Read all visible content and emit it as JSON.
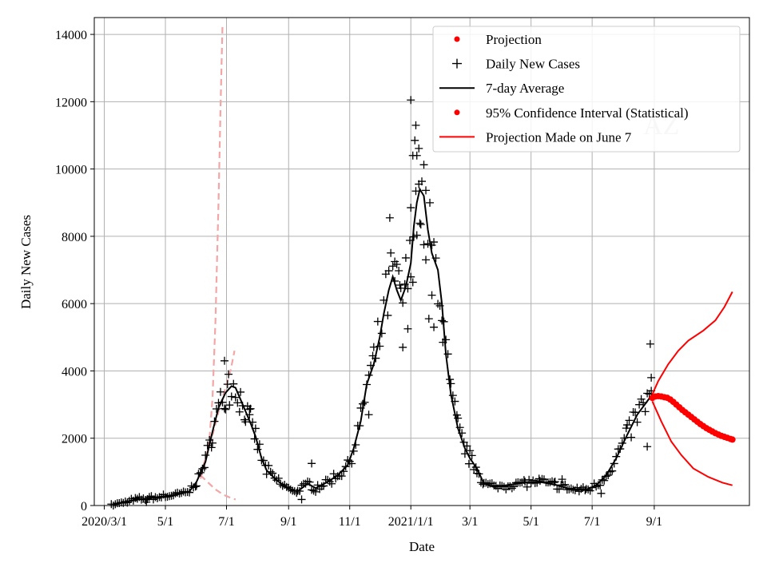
{
  "chart_data": {
    "type": "line",
    "title": "",
    "xlabel": "Date",
    "ylabel": "Daily New Cases",
    "watermark": "AZ",
    "xlim": [
      "2020-02-20",
      "2021-12-05"
    ],
    "ylim": [
      0,
      14500
    ],
    "x_ticks": [
      {
        "date": "2020-03-01",
        "label": "2020/3/1"
      },
      {
        "date": "2020-05-01",
        "label": "5/1"
      },
      {
        "date": "2020-07-01",
        "label": "7/1"
      },
      {
        "date": "2020-09-01",
        "label": "9/1"
      },
      {
        "date": "2020-11-01",
        "label": "11/1"
      },
      {
        "date": "2021-01-01",
        "label": "2021/1/1"
      },
      {
        "date": "2021-03-01",
        "label": "3/1"
      },
      {
        "date": "2021-05-01",
        "label": "5/1"
      },
      {
        "date": "2021-07-01",
        "label": "7/1"
      },
      {
        "date": "2021-09-01",
        "label": "9/1"
      }
    ],
    "y_ticks": [
      0,
      2000,
      4000,
      6000,
      8000,
      10000,
      12000,
      14000
    ],
    "grid": true,
    "legend_position": "top-right",
    "legend": [
      {
        "label": "Projection",
        "marker": "dot",
        "color": "#ff0000"
      },
      {
        "label": "Daily New Cases",
        "marker": "plus",
        "color": "#000000"
      },
      {
        "label": "7-day Average",
        "marker": "line",
        "color": "#000000"
      },
      {
        "label": "95% Confidence Interval (Statistical)",
        "marker": "dot",
        "color": "#ff0000"
      },
      {
        "label": "Projection Made on June 7",
        "marker": "line",
        "color": "#ff0000"
      }
    ],
    "series": [
      {
        "name": "7-day Average",
        "color": "#000000",
        "style": "line",
        "points": [
          [
            "2020-03-10",
            20
          ],
          [
            "2020-03-20",
            90
          ],
          [
            "2020-04-01",
            170
          ],
          [
            "2020-04-15",
            220
          ],
          [
            "2020-05-01",
            280
          ],
          [
            "2020-05-15",
            340
          ],
          [
            "2020-05-25",
            420
          ],
          [
            "2020-06-01",
            700
          ],
          [
            "2020-06-10",
            1300
          ],
          [
            "2020-06-17",
            2200
          ],
          [
            "2020-06-23",
            2900
          ],
          [
            "2020-06-30",
            3350
          ],
          [
            "2020-07-06",
            3550
          ],
          [
            "2020-07-10",
            3500
          ],
          [
            "2020-07-15",
            3150
          ],
          [
            "2020-07-20",
            2800
          ],
          [
            "2020-07-25",
            2450
          ],
          [
            "2020-07-30",
            2050
          ],
          [
            "2020-08-05",
            1400
          ],
          [
            "2020-08-10",
            1050
          ],
          [
            "2020-08-20",
            750
          ],
          [
            "2020-09-01",
            500
          ],
          [
            "2020-09-10",
            420
          ],
          [
            "2020-09-20",
            650
          ],
          [
            "2020-09-28",
            520
          ],
          [
            "2020-10-10",
            700
          ],
          [
            "2020-10-20",
            900
          ],
          [
            "2020-10-30",
            1200
          ],
          [
            "2020-11-05",
            1700
          ],
          [
            "2020-11-12",
            2500
          ],
          [
            "2020-11-18",
            3600
          ],
          [
            "2020-11-25",
            4200
          ],
          [
            "2020-12-01",
            5000
          ],
          [
            "2020-12-05",
            5700
          ],
          [
            "2020-12-10",
            6400
          ],
          [
            "2020-12-14",
            6800
          ],
          [
            "2020-12-18",
            6400
          ],
          [
            "2020-12-22",
            6100
          ],
          [
            "2020-12-27",
            6500
          ],
          [
            "2021-01-01",
            7200
          ],
          [
            "2021-01-04",
            8300
          ],
          [
            "2021-01-07",
            9000
          ],
          [
            "2021-01-10",
            9400
          ],
          [
            "2021-01-14",
            9200
          ],
          [
            "2021-01-18",
            8200
          ],
          [
            "2021-01-22",
            7500
          ],
          [
            "2021-01-28",
            7000
          ],
          [
            "2021-02-01",
            6000
          ],
          [
            "2021-02-05",
            4500
          ],
          [
            "2021-02-10",
            3300
          ],
          [
            "2021-02-17",
            2300
          ],
          [
            "2021-02-24",
            1700
          ],
          [
            "2021-03-01",
            1400
          ],
          [
            "2021-03-08",
            1100
          ],
          [
            "2021-03-15",
            650
          ],
          [
            "2021-03-25",
            550
          ],
          [
            "2021-04-10",
            620
          ],
          [
            "2021-04-25",
            680
          ],
          [
            "2021-05-10",
            700
          ],
          [
            "2021-05-25",
            620
          ],
          [
            "2021-06-10",
            480
          ],
          [
            "2021-06-25",
            470
          ],
          [
            "2021-07-05",
            600
          ],
          [
            "2021-07-15",
            900
          ],
          [
            "2021-07-25",
            1400
          ],
          [
            "2021-08-05",
            2100
          ],
          [
            "2021-08-15",
            2700
          ],
          [
            "2021-08-25",
            3100
          ],
          [
            "2021-08-30",
            3300
          ]
        ]
      },
      {
        "name": "Projection Made on June 7",
        "color": "#ff0000",
        "style": "line",
        "lines": [
          [
            [
              "2021-08-30",
              3300
            ],
            [
              "2021-09-05",
              3700
            ],
            [
              "2021-09-15",
              4200
            ],
            [
              "2021-09-25",
              4600
            ],
            [
              "2021-10-05",
              4900
            ],
            [
              "2021-10-20",
              5200
            ],
            [
              "2021-11-01",
              5500
            ],
            [
              "2021-11-10",
              5900
            ],
            [
              "2021-11-18",
              6350
            ]
          ],
          [
            [
              "2021-08-30",
              3100
            ],
            [
              "2021-09-08",
              2500
            ],
            [
              "2021-09-18",
              1900
            ],
            [
              "2021-09-28",
              1500
            ],
            [
              "2021-10-10",
              1100
            ],
            [
              "2021-10-25",
              850
            ],
            [
              "2021-11-08",
              680
            ],
            [
              "2021-11-18",
              600
            ]
          ]
        ]
      },
      {
        "name": "Projection",
        "color": "#ff0000",
        "style": "dots",
        "points": [
          [
            "2021-08-30",
            3200
          ],
          [
            "2021-09-02",
            3240
          ],
          [
            "2021-09-05",
            3250
          ],
          [
            "2021-09-08",
            3240
          ],
          [
            "2021-09-11",
            3220
          ],
          [
            "2021-09-14",
            3200
          ],
          [
            "2021-09-17",
            3150
          ],
          [
            "2021-09-20",
            3080
          ],
          [
            "2021-09-23",
            3000
          ],
          [
            "2021-09-26",
            2920
          ],
          [
            "2021-09-29",
            2840
          ],
          [
            "2021-10-02",
            2770
          ],
          [
            "2021-10-05",
            2700
          ],
          [
            "2021-10-08",
            2630
          ],
          [
            "2021-10-11",
            2560
          ],
          [
            "2021-10-14",
            2490
          ],
          [
            "2021-10-17",
            2420
          ],
          [
            "2021-10-20",
            2360
          ],
          [
            "2021-10-23",
            2300
          ],
          [
            "2021-10-26",
            2250
          ],
          [
            "2021-10-29",
            2200
          ],
          [
            "2021-11-01",
            2150
          ],
          [
            "2021-11-04",
            2110
          ],
          [
            "2021-11-07",
            2070
          ],
          [
            "2021-11-10",
            2040
          ],
          [
            "2021-11-13",
            2010
          ],
          [
            "2021-11-16",
            1980
          ],
          [
            "2021-11-18",
            1960
          ]
        ]
      },
      {
        "name": "Early projection (dashed)",
        "color": "#f4a6a6",
        "style": "dashed",
        "lines": [
          [
            [
              "2020-06-05",
              800
            ],
            [
              "2020-06-10",
              1300
            ],
            [
              "2020-06-14",
              2000
            ],
            [
              "2020-06-17",
              3200
            ],
            [
              "2020-06-20",
              5500
            ],
            [
              "2020-06-23",
              9000
            ],
            [
              "2020-06-25",
              11800
            ],
            [
              "2020-06-27",
              14300
            ]
          ],
          [
            [
              "2020-06-05",
              900
            ],
            [
              "2020-06-12",
              1600
            ],
            [
              "2020-06-18",
              2200
            ],
            [
              "2020-06-24",
              2900
            ],
            [
              "2020-06-30",
              3500
            ],
            [
              "2020-07-05",
              4000
            ],
            [
              "2020-07-09",
              4600
            ]
          ],
          [
            [
              "2020-06-05",
              900
            ],
            [
              "2020-06-12",
              700
            ],
            [
              "2020-06-20",
              480
            ],
            [
              "2020-06-28",
              320
            ],
            [
              "2020-07-05",
              230
            ],
            [
              "2020-07-10",
              180
            ]
          ]
        ]
      },
      {
        "name": "Daily New Cases",
        "color": "#000000",
        "style": "plus",
        "anchors": [
          [
            "2020-03-08",
            5
          ],
          [
            "2020-03-20",
            90
          ],
          [
            "2020-04-01",
            180
          ],
          [
            "2020-04-15",
            220
          ],
          [
            "2020-05-01",
            280
          ],
          [
            "2020-05-15",
            340
          ],
          [
            "2020-05-25",
            420
          ],
          [
            "2020-06-01",
            700
          ],
          [
            "2020-06-10",
            1300
          ],
          [
            "2020-06-17",
            2200
          ],
          [
            "2020-06-23",
            2900
          ],
          [
            "2020-06-30",
            3350
          ],
          [
            "2020-07-06",
            3550
          ],
          [
            "2020-07-10",
            3500
          ],
          [
            "2020-07-15",
            3150
          ],
          [
            "2020-07-20",
            2800
          ],
          [
            "2020-07-25",
            2450
          ],
          [
            "2020-07-30",
            2050
          ],
          [
            "2020-08-05",
            1400
          ],
          [
            "2020-08-10",
            1050
          ],
          [
            "2020-08-20",
            750
          ],
          [
            "2020-09-01",
            500
          ],
          [
            "2020-09-10",
            420
          ],
          [
            "2020-09-20",
            650
          ],
          [
            "2020-09-28",
            520
          ],
          [
            "2020-10-10",
            700
          ],
          [
            "2020-10-20",
            900
          ],
          [
            "2020-10-30",
            1200
          ],
          [
            "2020-11-05",
            1700
          ],
          [
            "2020-11-12",
            2500
          ],
          [
            "2020-11-18",
            3600
          ],
          [
            "2020-11-25",
            4200
          ],
          [
            "2020-12-01",
            5000
          ],
          [
            "2020-12-05",
            5700
          ],
          [
            "2020-12-10",
            6400
          ],
          [
            "2020-12-14",
            6800
          ],
          [
            "2020-12-18",
            6400
          ],
          [
            "2020-12-22",
            6100
          ],
          [
            "2020-12-27",
            6500
          ],
          [
            "2021-01-01",
            7200
          ],
          [
            "2021-01-04",
            8300
          ],
          [
            "2021-01-07",
            9000
          ],
          [
            "2021-01-10",
            9400
          ],
          [
            "2021-01-14",
            9200
          ],
          [
            "2021-01-18",
            8200
          ],
          [
            "2021-01-22",
            7500
          ],
          [
            "2021-01-28",
            7000
          ],
          [
            "2021-02-01",
            6000
          ],
          [
            "2021-02-05",
            4500
          ],
          [
            "2021-02-10",
            3300
          ],
          [
            "2021-02-17",
            2300
          ],
          [
            "2021-02-24",
            1700
          ],
          [
            "2021-03-01",
            1400
          ],
          [
            "2021-03-08",
            1100
          ],
          [
            "2021-03-15",
            650
          ],
          [
            "2021-03-25",
            550
          ],
          [
            "2021-04-10",
            620
          ],
          [
            "2021-04-25",
            680
          ],
          [
            "2021-05-10",
            700
          ],
          [
            "2021-05-25",
            620
          ],
          [
            "2021-06-10",
            480
          ],
          [
            "2021-06-25",
            470
          ],
          [
            "2021-07-05",
            600
          ],
          [
            "2021-07-15",
            900
          ],
          [
            "2021-07-25",
            1400
          ],
          [
            "2021-08-05",
            2100
          ],
          [
            "2021-08-15",
            2700
          ],
          [
            "2021-08-25",
            3100
          ],
          [
            "2021-08-30",
            3300
          ]
        ],
        "highlights": [
          [
            "2020-06-29",
            4300
          ],
          [
            "2020-07-03",
            3900
          ],
          [
            "2020-07-24",
            2700
          ],
          [
            "2020-09-24",
            1250
          ],
          [
            "2020-11-20",
            2700
          ],
          [
            "2020-12-11",
            8550
          ],
          [
            "2020-12-16",
            7250
          ],
          [
            "2020-12-21",
            6550
          ],
          [
            "2020-12-24",
            4700
          ],
          [
            "2020-12-29",
            5250
          ],
          [
            "2021-01-01",
            8850
          ],
          [
            "2021-01-01",
            12050
          ],
          [
            "2021-01-03",
            10400
          ],
          [
            "2021-01-06",
            11300
          ],
          [
            "2021-01-05",
            10850
          ],
          [
            "2021-01-07",
            10400
          ],
          [
            "2021-01-09",
            9550
          ],
          [
            "2021-01-11",
            8350
          ],
          [
            "2021-01-14",
            7750
          ],
          [
            "2021-01-16",
            7300
          ],
          [
            "2021-01-19",
            5550
          ],
          [
            "2021-01-22",
            6250
          ],
          [
            "2021-01-24",
            5300
          ],
          [
            "2021-02-02",
            4850
          ],
          [
            "2021-08-28",
            4800
          ],
          [
            "2021-08-25",
            1750
          ],
          [
            "2021-08-29",
            3800
          ],
          [
            "2021-06-01",
            780
          ],
          [
            "2021-07-10",
            360
          ],
          [
            "2020-04-12",
            100
          ],
          [
            "2020-09-14",
            180
          ]
        ]
      }
    ]
  }
}
